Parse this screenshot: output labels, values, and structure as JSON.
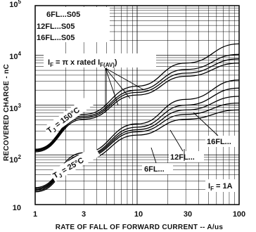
{
  "chart_data": {
    "type": "line",
    "xscale": "log",
    "yscale": "log",
    "xlim": [
      1,
      100
    ],
    "ylim": [
      10,
      100000
    ],
    "grid": true,
    "xlabel": "RATE OF FALL OF FORWARD CURRENT -- A/us",
    "ylabel": "RECOVERED CHARGE - nC",
    "x_ticks": [
      "1",
      "3",
      "10",
      "30",
      "100"
    ],
    "y_ticks": [
      {
        "base": "10",
        "exp": ""
      },
      {
        "base": "10",
        "exp": "2"
      },
      {
        "base": "10",
        "exp": "3"
      },
      {
        "base": "10",
        "exp": "4"
      },
      {
        "base": "10",
        "exp": "5"
      }
    ],
    "legend_lines": [
      "6FL...S05",
      "12FL...S05",
      "16FL...S05"
    ],
    "annotations": {
      "if_rated_main": "I",
      "if_rated_sub1": "F",
      "if_rated_mid": " = π x rated I",
      "if_rated_sub2": "F(AV)",
      "tj150_main": "T",
      "tj150_sub": "J",
      "tj150_rest": " = 150°C",
      "tj25_main": "T",
      "tj25_sub": "J",
      "tj25_rest": " = 25°C",
      "label_16fl": "16FL...",
      "label_12fl": "12FL...",
      "label_6fl": "6FL...",
      "if1a_main": "I",
      "if1a_sub": "F",
      "if1a_rest": " = 1A"
    },
    "series": [
      {
        "name": "16FL...",
        "x": [
          1,
          3,
          10,
          30,
          100
        ],
        "y": [
          130,
          650,
          2400,
          7000,
          17000
        ]
      },
      {
        "name": "12FL...",
        "x": [
          1,
          3,
          10,
          30,
          100
        ],
        "y": [
          125,
          600,
          2000,
          5200,
          10500
        ]
      },
      {
        "name": "6FL...",
        "x": [
          1,
          3,
          10,
          30,
          100
        ],
        "y": [
          120,
          560,
          1800,
          4400,
          8500
        ]
      },
      {
        "name": "",
        "x": [
          1,
          3,
          10,
          30,
          100
        ],
        "y": [
          115,
          520,
          1600,
          3800,
          7000
        ]
      },
      {
        "name": "16FL...",
        "x": [
          1,
          3,
          10,
          30,
          100
        ],
        "y": [
          22,
          110,
          420,
          1300,
          3200
        ]
      },
      {
        "name": "12FL...",
        "x": [
          1,
          3,
          10,
          30,
          100
        ],
        "y": [
          21,
          100,
          360,
          1000,
          2200
        ]
      },
      {
        "name": "6FL...",
        "x": [
          1,
          3,
          10,
          30,
          100
        ],
        "y": [
          20,
          95,
          320,
          800,
          1500
        ]
      },
      {
        "name": "",
        "x": [
          1,
          3,
          10,
          30,
          100
        ],
        "y": [
          19,
          90,
          290,
          650,
          1100
        ]
      },
      {
        "name": "",
        "x": [
          1,
          3,
          10,
          30,
          100
        ],
        "y": [
          18,
          80,
          250,
          520,
          800
        ]
      }
    ]
  }
}
